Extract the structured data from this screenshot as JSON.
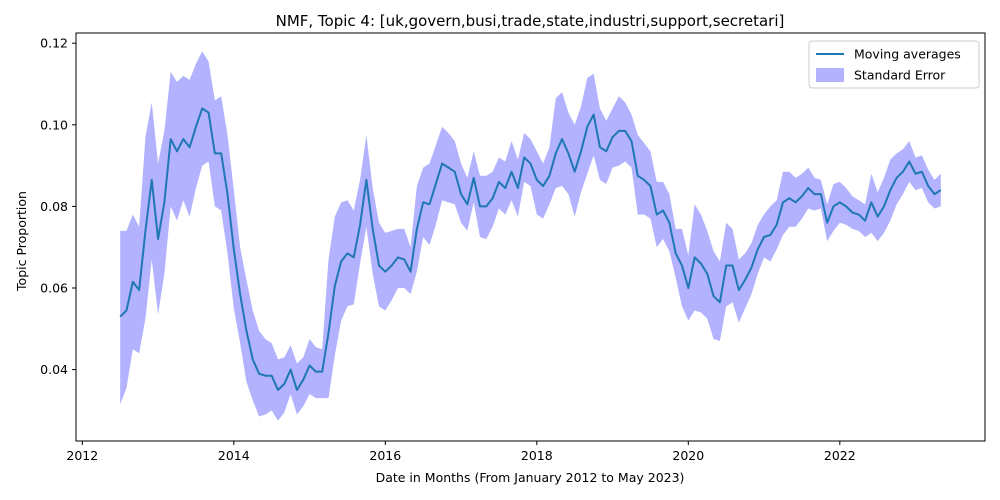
{
  "chart_data": {
    "type": "line",
    "title": "NMF, Topic 4: [uk,govern,busi,trade,state,industri,support,secretari]",
    "xlabel": "Date in Months (From January 2012 to May 2023)",
    "ylabel": "Topic Proportion",
    "xlim": [
      "2011-12-01",
      "2023-12-01"
    ],
    "ylim": [
      0.0225,
      0.1225
    ],
    "x_ticks": [
      "2012",
      "2014",
      "2016",
      "2018",
      "2020",
      "2022"
    ],
    "y_ticks": [
      "0.04",
      "0.06",
      "0.08",
      "0.10",
      "0.12"
    ],
    "grid": false,
    "legend": {
      "position": "top-right",
      "entries": [
        "Moving averages",
        "Standard Error"
      ]
    },
    "colors": {
      "line": "#1f77b4",
      "band": "#0000ff"
    },
    "series": [
      {
        "name": "Moving averages",
        "x": [
          "2012-07",
          "2012-08",
          "2012-09",
          "2012-10",
          "2012-11",
          "2012-12",
          "2013-01",
          "2013-02",
          "2013-03",
          "2013-04",
          "2013-05",
          "2013-06",
          "2013-07",
          "2013-08",
          "2013-09",
          "2013-10",
          "2013-11",
          "2013-12",
          "2014-01",
          "2014-02",
          "2014-03",
          "2014-04",
          "2014-05",
          "2014-06",
          "2014-07",
          "2014-08",
          "2014-09",
          "2014-10",
          "2014-11",
          "2014-12",
          "2015-01",
          "2015-02",
          "2015-03",
          "2015-04",
          "2015-05",
          "2015-06",
          "2015-07",
          "2015-08",
          "2015-09",
          "2015-10",
          "2015-11",
          "2015-12",
          "2016-01",
          "2016-02",
          "2016-03",
          "2016-04",
          "2016-05",
          "2016-06",
          "2016-07",
          "2016-08",
          "2016-09",
          "2016-10",
          "2016-11",
          "2016-12",
          "2017-01",
          "2017-02",
          "2017-03",
          "2017-04",
          "2017-05",
          "2017-06",
          "2017-07",
          "2017-08",
          "2017-09",
          "2017-10",
          "2017-11",
          "2017-12",
          "2018-01",
          "2018-02",
          "2018-03",
          "2018-04",
          "2018-05",
          "2018-06",
          "2018-07",
          "2018-08",
          "2018-09",
          "2018-10",
          "2018-11",
          "2018-12",
          "2019-01",
          "2019-02",
          "2019-03",
          "2019-04",
          "2019-05",
          "2019-06",
          "2019-07",
          "2019-08",
          "2019-09",
          "2019-10",
          "2019-11",
          "2019-12",
          "2020-01",
          "2020-02",
          "2020-03",
          "2020-04",
          "2020-05",
          "2020-06",
          "2020-07",
          "2020-08",
          "2020-09",
          "2020-10",
          "2020-11",
          "2020-12",
          "2021-01",
          "2021-02",
          "2021-03",
          "2021-04",
          "2021-05",
          "2021-06",
          "2021-07",
          "2021-08",
          "2021-09",
          "2021-10",
          "2021-11",
          "2021-12",
          "2022-01",
          "2022-02",
          "2022-03",
          "2022-04",
          "2022-05",
          "2022-06",
          "2022-07",
          "2022-08",
          "2022-09",
          "2022-10",
          "2022-11",
          "2022-12",
          "2023-01",
          "2023-02",
          "2023-03",
          "2023-04",
          "2023-05"
        ],
        "values": [
          0.053,
          0.0545,
          0.0615,
          0.0595,
          0.074,
          0.0865,
          0.072,
          0.081,
          0.0965,
          0.0935,
          0.0965,
          0.0945,
          0.0995,
          0.104,
          0.103,
          0.093,
          0.093,
          0.083,
          0.0695,
          0.0585,
          0.0495,
          0.0425,
          0.039,
          0.0385,
          0.0385,
          0.035,
          0.0365,
          0.04,
          0.035,
          0.0375,
          0.041,
          0.0395,
          0.0395,
          0.049,
          0.0605,
          0.0665,
          0.0685,
          0.0675,
          0.0755,
          0.0865,
          0.0745,
          0.0655,
          0.064,
          0.0655,
          0.0675,
          0.067,
          0.064,
          0.0745,
          0.081,
          0.0805,
          0.0855,
          0.0905,
          0.0895,
          0.0885,
          0.083,
          0.0805,
          0.087,
          0.08,
          0.08,
          0.082,
          0.086,
          0.0845,
          0.0885,
          0.0845,
          0.092,
          0.0905,
          0.0865,
          0.085,
          0.0875,
          0.093,
          0.0965,
          0.093,
          0.0885,
          0.0935,
          0.0995,
          0.1025,
          0.0945,
          0.0935,
          0.097,
          0.0985,
          0.0985,
          0.096,
          0.0875,
          0.0865,
          0.085,
          0.078,
          0.079,
          0.076,
          0.0685,
          0.0655,
          0.06,
          0.0675,
          0.066,
          0.0635,
          0.058,
          0.0565,
          0.0655,
          0.0655,
          0.0595,
          0.062,
          0.065,
          0.0695,
          0.0725,
          0.073,
          0.0755,
          0.081,
          0.082,
          0.081,
          0.0825,
          0.0845,
          0.083,
          0.083,
          0.076,
          0.08,
          0.081,
          0.08,
          0.0785,
          0.078,
          0.0765,
          0.081,
          0.0775,
          0.08,
          0.084,
          0.087,
          0.0885,
          0.091,
          0.088,
          0.0885,
          0.085,
          0.083,
          0.084
        ]
      },
      {
        "name": "Standard Error",
        "upper": [
          0.074,
          0.074,
          0.078,
          0.075,
          0.097,
          0.1055,
          0.0905,
          0.0985,
          0.113,
          0.1105,
          0.112,
          0.111,
          0.115,
          0.118,
          0.1155,
          0.106,
          0.107,
          0.0975,
          0.084,
          0.07,
          0.062,
          0.0545,
          0.0495,
          0.0475,
          0.0465,
          0.0425,
          0.043,
          0.046,
          0.0415,
          0.043,
          0.0475,
          0.0455,
          0.045,
          0.067,
          0.0775,
          0.081,
          0.0815,
          0.079,
          0.0865,
          0.0975,
          0.0845,
          0.076,
          0.0735,
          0.074,
          0.0745,
          0.0745,
          0.07,
          0.085,
          0.0895,
          0.0905,
          0.095,
          0.0995,
          0.098,
          0.096,
          0.0905,
          0.087,
          0.0935,
          0.0875,
          0.0875,
          0.0885,
          0.092,
          0.091,
          0.096,
          0.0915,
          0.098,
          0.0965,
          0.0935,
          0.0905,
          0.0945,
          0.1065,
          0.108,
          0.103,
          0.1,
          0.1045,
          0.1115,
          0.1125,
          0.104,
          0.101,
          0.104,
          0.107,
          0.1055,
          0.1025,
          0.0975,
          0.0955,
          0.0935,
          0.086,
          0.086,
          0.083,
          0.0745,
          0.0745,
          0.068,
          0.0805,
          0.078,
          0.074,
          0.069,
          0.0665,
          0.076,
          0.0745,
          0.067,
          0.0685,
          0.071,
          0.0755,
          0.078,
          0.08,
          0.0815,
          0.0885,
          0.0885,
          0.087,
          0.088,
          0.0895,
          0.087,
          0.0865,
          0.0805,
          0.0855,
          0.086,
          0.0845,
          0.0825,
          0.0815,
          0.0805,
          0.088,
          0.0835,
          0.087,
          0.0915,
          0.093,
          0.094,
          0.096,
          0.092,
          0.0925,
          0.089,
          0.0865,
          0.088
        ],
        "lower": [
          0.0315,
          0.0355,
          0.045,
          0.044,
          0.0525,
          0.067,
          0.0535,
          0.0635,
          0.08,
          0.0765,
          0.0815,
          0.0775,
          0.0845,
          0.09,
          0.091,
          0.08,
          0.079,
          0.0685,
          0.055,
          0.0465,
          0.037,
          0.0325,
          0.0285,
          0.029,
          0.03,
          0.0275,
          0.0295,
          0.034,
          0.029,
          0.031,
          0.034,
          0.033,
          0.033,
          0.033,
          0.0435,
          0.052,
          0.0555,
          0.056,
          0.066,
          0.075,
          0.0635,
          0.0555,
          0.0545,
          0.057,
          0.06,
          0.06,
          0.0585,
          0.064,
          0.0725,
          0.0705,
          0.0755,
          0.0815,
          0.081,
          0.0805,
          0.076,
          0.074,
          0.081,
          0.0725,
          0.072,
          0.075,
          0.0795,
          0.078,
          0.0815,
          0.0775,
          0.086,
          0.085,
          0.078,
          0.077,
          0.0805,
          0.0845,
          0.085,
          0.083,
          0.0775,
          0.0835,
          0.088,
          0.0925,
          0.0865,
          0.0855,
          0.0895,
          0.09,
          0.091,
          0.0895,
          0.078,
          0.078,
          0.077,
          0.07,
          0.072,
          0.069,
          0.0625,
          0.0555,
          0.052,
          0.0545,
          0.054,
          0.0525,
          0.0475,
          0.047,
          0.0555,
          0.0565,
          0.0515,
          0.055,
          0.0585,
          0.0635,
          0.0675,
          0.0665,
          0.0695,
          0.073,
          0.075,
          0.075,
          0.077,
          0.0795,
          0.079,
          0.0795,
          0.0715,
          0.074,
          0.076,
          0.0755,
          0.0745,
          0.074,
          0.0725,
          0.0735,
          0.0715,
          0.0735,
          0.0765,
          0.0805,
          0.083,
          0.086,
          0.084,
          0.0845,
          0.081,
          0.0795,
          0.08
        ]
      }
    ]
  }
}
